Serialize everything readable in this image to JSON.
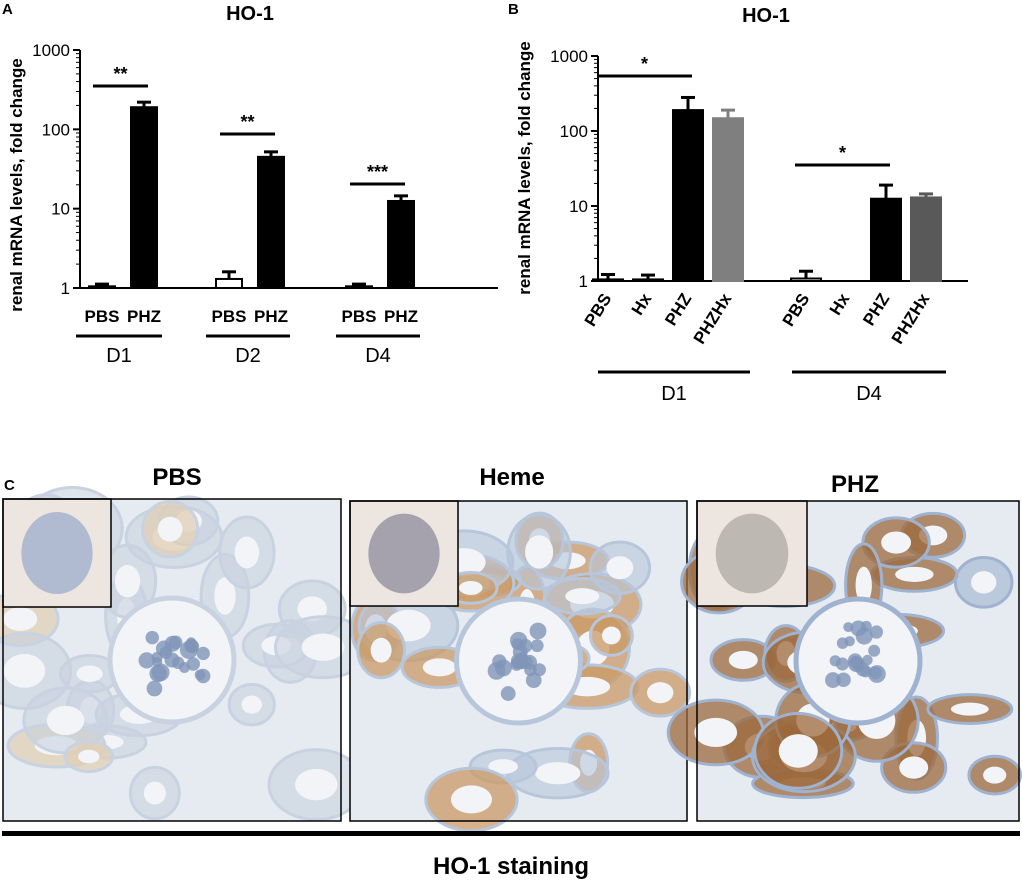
{
  "panels": {
    "A": {
      "letter": "A"
    },
    "B": {
      "letter": "B"
    },
    "C": {
      "letter": "C"
    }
  },
  "chart_data": [
    {
      "panel": "A",
      "type": "bar",
      "title": "HO-1",
      "ylabel": "renal mRNA levels, fold change",
      "yscale": "log",
      "ylim": [
        1,
        1000
      ],
      "yticks": [
        "1",
        "10",
        "100",
        "1000"
      ],
      "groups": [
        {
          "label": "D1",
          "categories": [
            "PBS",
            "PHZ"
          ],
          "values": [
            1.05,
            190
          ],
          "errors": [
            1.12,
            220
          ],
          "colors": [
            "#ffffff",
            "#000000"
          ],
          "significance": "**"
        },
        {
          "label": "D2",
          "categories": [
            "PBS",
            "PHZ"
          ],
          "values": [
            1.3,
            45
          ],
          "errors": [
            1.6,
            52
          ],
          "colors": [
            "#ffffff",
            "#000000"
          ],
          "significance": "**"
        },
        {
          "label": "D4",
          "categories": [
            "PBS",
            "PHZ"
          ],
          "values": [
            1.05,
            12.5
          ],
          "errors": [
            1.12,
            14.5
          ],
          "colors": [
            "#ffffff",
            "#000000"
          ],
          "significance": "***"
        }
      ]
    },
    {
      "panel": "B",
      "type": "bar",
      "title": "HO-1",
      "ylabel": "renal mRNA levels, fold change",
      "yscale": "log",
      "ylim": [
        1,
        1000
      ],
      "yticks": [
        "1",
        "10",
        "100",
        "1000"
      ],
      "groups": [
        {
          "label": "D1",
          "categories": [
            "PBS",
            "Hx",
            "PHZ",
            "PHZHx"
          ],
          "values": [
            1.05,
            1.05,
            190,
            148
          ],
          "errors": [
            1.22,
            1.2,
            280,
            190
          ],
          "colors": [
            "#ffffff",
            "#ffffff",
            "#000000",
            "#7f7f7f"
          ],
          "significance": "*"
        },
        {
          "label": "D4",
          "categories": [
            "PBS",
            "Hx",
            "PHZ",
            "PHZHx"
          ],
          "values": [
            1.08,
            1.0,
            12.5,
            13
          ],
          "errors": [
            1.35,
            1.0,
            19,
            14.5
          ],
          "colors": [
            "#ffffff",
            "#ffffff",
            "#000000",
            "#595959"
          ],
          "significance": "*"
        }
      ]
    }
  ],
  "micrographs": [
    {
      "title": "PBS",
      "tissue": "#c8d2e0",
      "stain": "#e0cfb4",
      "stainLevel": 0.1
    },
    {
      "title": "Heme",
      "tissue": "#b7c6db",
      "stain": "#c99a66",
      "stainLevel": 0.6
    },
    {
      "title": "PHZ",
      "tissue": "#9fb3d0",
      "stain": "#9c6a3c",
      "stainLevel": 0.85
    }
  ],
  "footer": {
    "label": "HO-1 staining"
  }
}
